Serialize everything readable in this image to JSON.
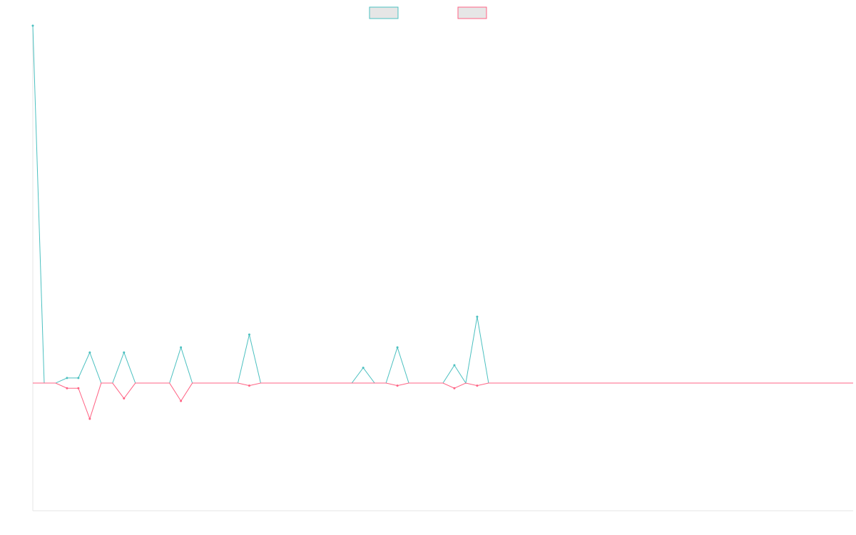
{
  "chart_data": {
    "type": "line",
    "title": "",
    "xlabel": "",
    "ylabel": "",
    "legend": {
      "placement": "top-center"
    },
    "grid": false,
    "x": [
      0,
      1,
      2,
      3,
      4,
      5,
      6,
      7,
      8,
      9,
      10,
      11,
      12,
      13,
      14,
      15,
      16,
      17,
      18,
      19,
      20,
      21,
      22,
      23,
      24,
      25,
      26,
      27,
      28,
      29,
      30,
      31,
      32,
      33,
      34,
      35,
      36,
      37,
      38,
      39,
      40,
      41,
      42,
      43,
      44,
      45,
      46,
      47,
      48,
      49,
      50,
      51,
      52,
      53,
      54,
      55,
      56,
      57,
      58,
      59,
      60,
      61,
      62,
      63,
      64,
      65,
      66,
      67,
      68,
      69,
      70,
      71,
      72
    ],
    "xlim": [
      0,
      72
    ],
    "ylim": [
      -100,
      280
    ],
    "series": [
      {
        "name": "",
        "color": "#4bc0c0",
        "values": [
          280,
          0,
          0,
          4,
          4,
          24,
          0,
          0,
          24,
          0,
          0,
          0,
          0,
          28,
          0,
          0,
          0,
          0,
          0,
          38,
          0,
          0,
          0,
          0,
          0,
          0,
          0,
          0,
          0,
          12,
          0,
          0,
          28,
          0,
          0,
          0,
          0,
          14,
          0,
          52,
          0,
          0,
          0,
          0,
          0,
          0,
          0,
          0,
          0,
          0,
          0,
          0,
          0,
          0,
          0,
          0,
          0,
          0,
          0,
          0,
          0,
          0,
          0,
          0,
          0,
          0,
          0,
          0,
          0,
          0,
          0,
          0,
          0
        ]
      },
      {
        "name": "",
        "color": "#ff6384",
        "values": [
          0,
          0,
          0,
          -4,
          -4,
          -28,
          0,
          0,
          -12,
          0,
          0,
          0,
          0,
          -14,
          0,
          0,
          0,
          0,
          0,
          -2,
          0,
          0,
          0,
          0,
          0,
          0,
          0,
          0,
          0,
          0,
          0,
          0,
          -2,
          0,
          0,
          0,
          0,
          -4,
          0,
          -2,
          0,
          0,
          0,
          0,
          0,
          0,
          0,
          0,
          0,
          0,
          0,
          0,
          0,
          0,
          0,
          0,
          0,
          0,
          0,
          0,
          0,
          0,
          0,
          0,
          0,
          0,
          0,
          0,
          0,
          0,
          0,
          0,
          0
        ]
      }
    ]
  }
}
